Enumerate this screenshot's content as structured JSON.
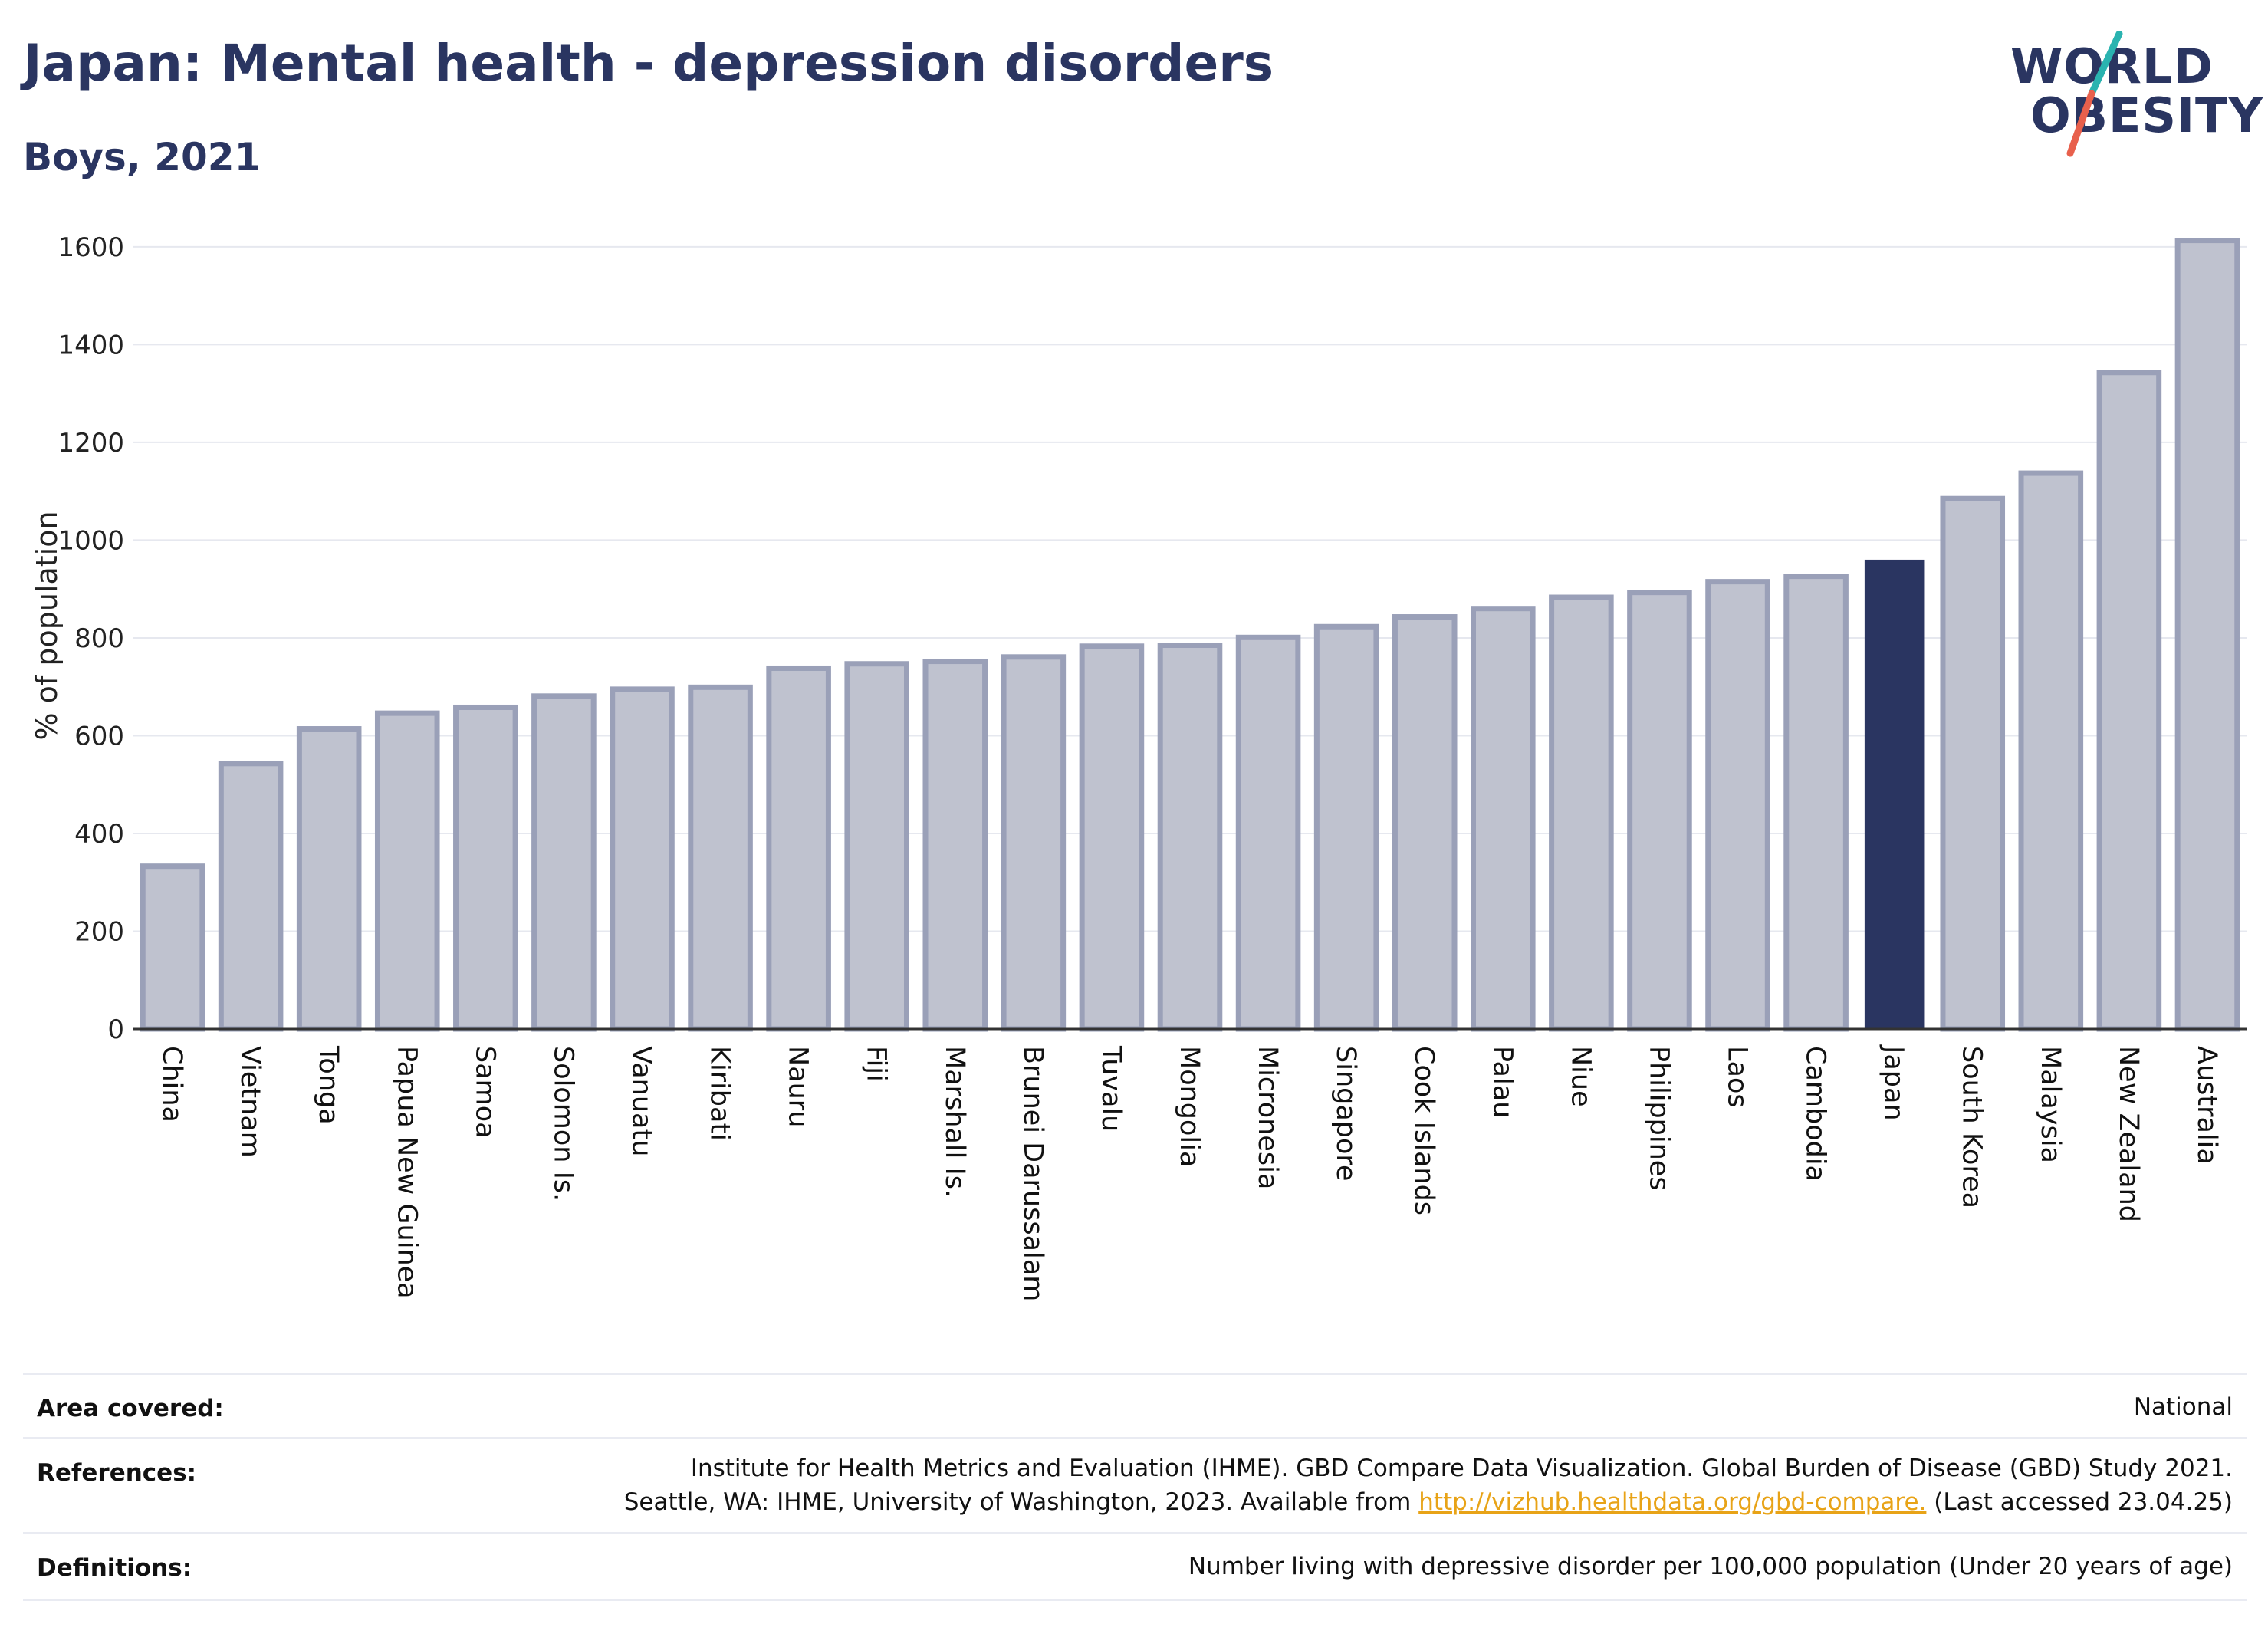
{
  "header": {
    "title": "Japan: Mental health - depression disorders",
    "subtitle": "Boys, 2021"
  },
  "logo": {
    "line1": "WORLD",
    "line2": "OBESITY",
    "colors": {
      "text": "#2a3561",
      "slash_top": "#2ab3b0",
      "slash_bottom": "#e8604c"
    }
  },
  "colors": {
    "bar": "#bfc2cf",
    "bar_stroke": "#9aa0b8",
    "highlight": "#2a3561",
    "grid": "#e6e8ef",
    "axis": "#333333"
  },
  "chart_data": {
    "type": "bar",
    "title": "Japan: Mental health - depression disorders",
    "subtitle": "Boys, 2021",
    "xlabel": "",
    "ylabel": "% of population",
    "ylim": [
      0,
      1650
    ],
    "yticks": [
      0,
      200,
      400,
      600,
      800,
      1000,
      1200,
      1400,
      1600
    ],
    "grid": true,
    "highlight": "Japan",
    "categories": [
      "China",
      "Vietnam",
      "Tonga",
      "Papua New Guinea",
      "Samoa",
      "Solomon Is.",
      "Vanuatu",
      "Kiribati",
      "Nauru",
      "Fiji",
      "Marshall Is.",
      "Brunei Darussalam",
      "Tuvalu",
      "Mongolia",
      "Micronesia",
      "Singapore",
      "Cook Islands",
      "Palau",
      "Niue",
      "Philippines",
      "Laos",
      "Cambodia",
      "Japan",
      "South Korea",
      "Malaysia",
      "New Zealand",
      "Australia"
    ],
    "values": [
      333,
      543,
      614,
      646,
      658,
      681,
      695,
      699,
      738,
      747,
      752,
      761,
      783,
      785,
      801,
      823,
      843,
      860,
      883,
      893,
      915,
      926,
      960,
      1085,
      1137,
      1343,
      1613
    ]
  },
  "info": {
    "area_label": "Area covered:",
    "area_value": "National",
    "references_label": "References:",
    "references_line1": "Institute for Health Metrics and Evaluation (IHME). GBD Compare Data Visualization. Global Burden of Disease (GBD) Study 2021.",
    "references_line2_pre": "Seattle, WA: IHME, University of Washington, 2023. Available from ",
    "references_link": "http://vizhub.healthdata.org/gbd-compare.",
    "references_line2_post": " (Last accessed 23.04.25)",
    "definitions_label": "Definitions:",
    "definitions_value": "Number living with depressive disorder per 100,000 population (Under 20 years of age)"
  }
}
